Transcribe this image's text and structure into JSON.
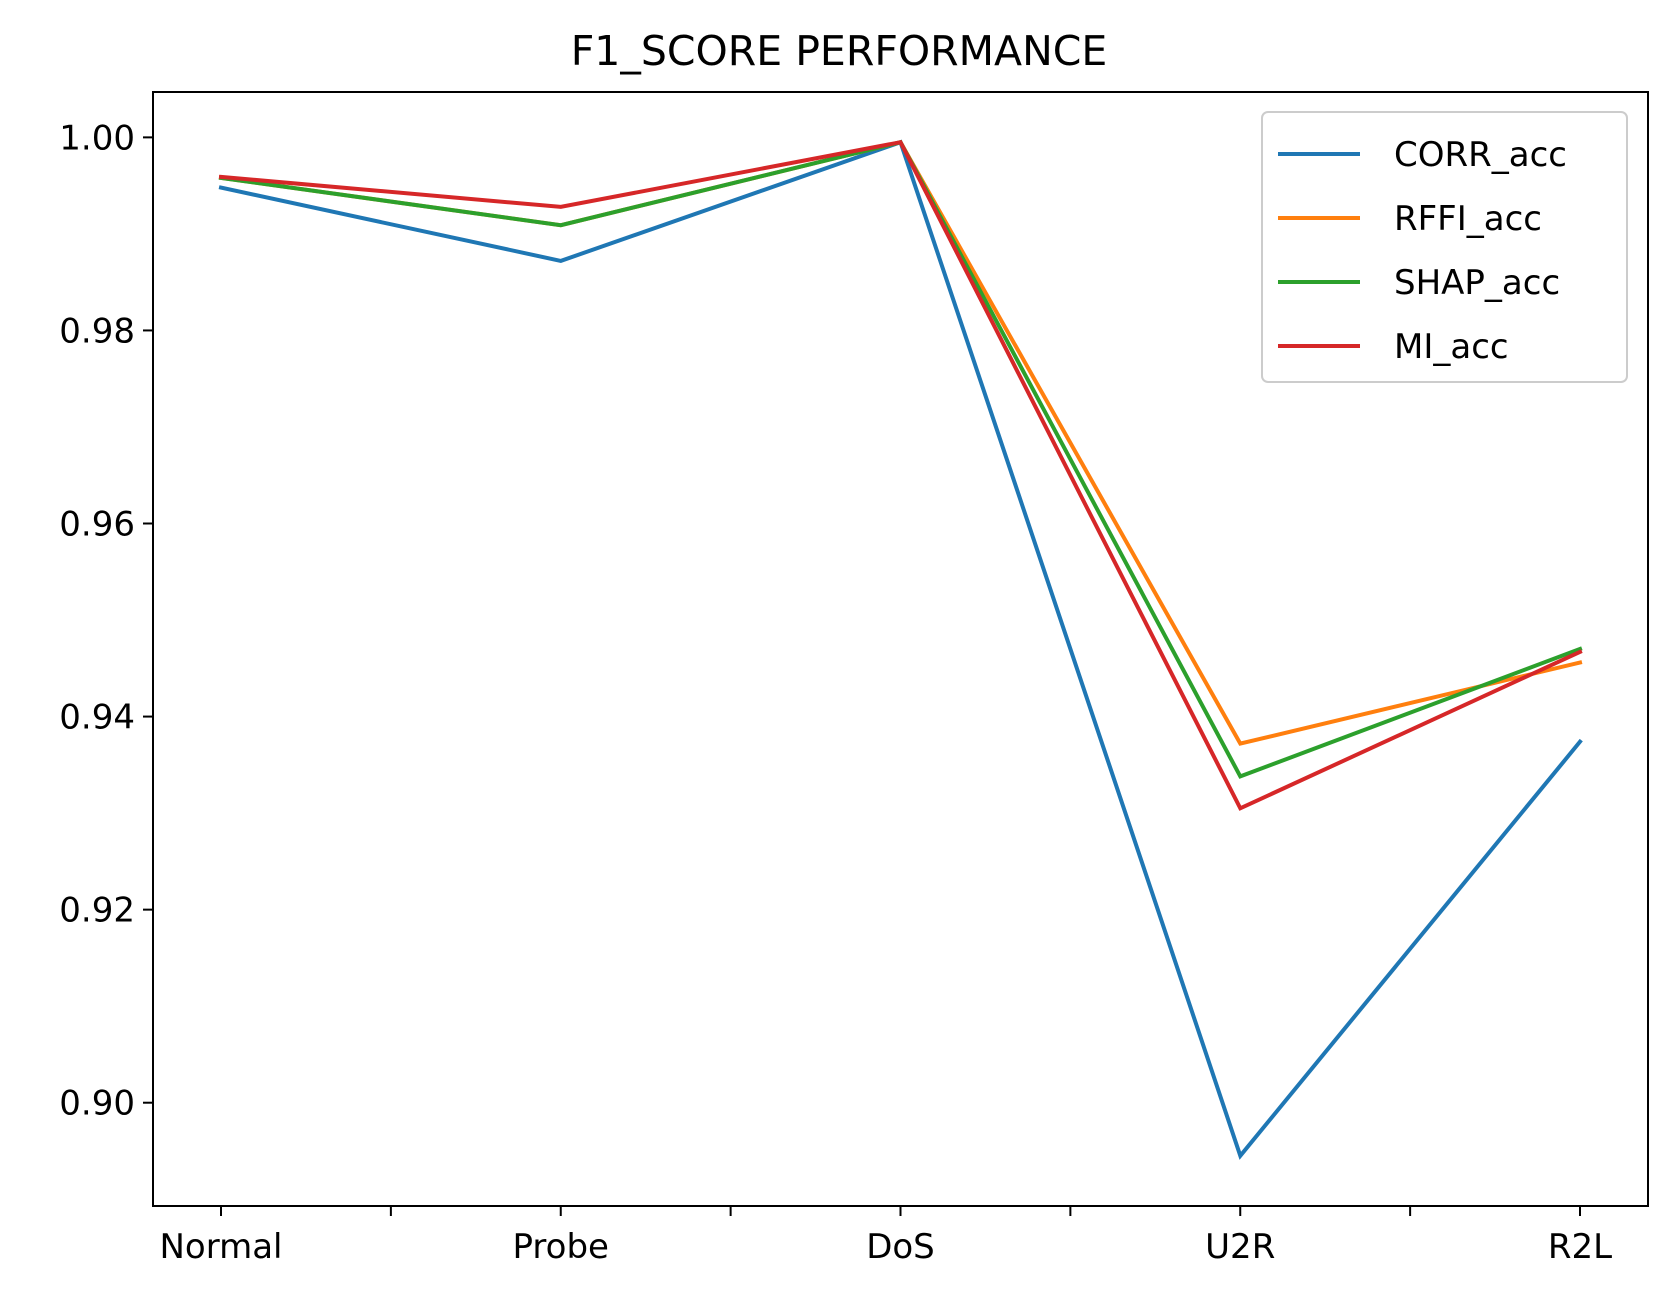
{
  "chart_data": {
    "type": "line",
    "title": "F1_SCORE PERFORMANCE",
    "xlabel": "",
    "ylabel": "",
    "categories": [
      "Normal",
      "Probe",
      "DoS",
      "U2R",
      "R2L"
    ],
    "minor_ticks_between_categories": true,
    "ylim": [
      0.8893,
      1.0047
    ],
    "yticks": [
      0.9,
      0.92,
      0.94,
      0.96,
      0.98,
      1.0
    ],
    "ytick_labels": [
      "0.90",
      "0.92",
      "0.94",
      "0.96",
      "0.98",
      "1.00"
    ],
    "grid": false,
    "legend_position": "top-right",
    "series": [
      {
        "name": "CORR_acc",
        "color": "#1f77b4",
        "values": [
          0.9948,
          0.9872,
          0.9995,
          0.8945,
          0.9374
        ]
      },
      {
        "name": "RFFI_acc",
        "color": "#ff7f0e",
        "values": [
          0.9958,
          0.9909,
          0.9995,
          0.9372,
          0.9456
        ]
      },
      {
        "name": "SHAP_acc",
        "color": "#2ca02c",
        "values": [
          0.9958,
          0.9909,
          0.9995,
          0.9338,
          0.947
        ]
      },
      {
        "name": "MI_acc",
        "color": "#d62728",
        "values": [
          0.9959,
          0.9928,
          0.9995,
          0.9305,
          0.9467
        ]
      }
    ]
  }
}
